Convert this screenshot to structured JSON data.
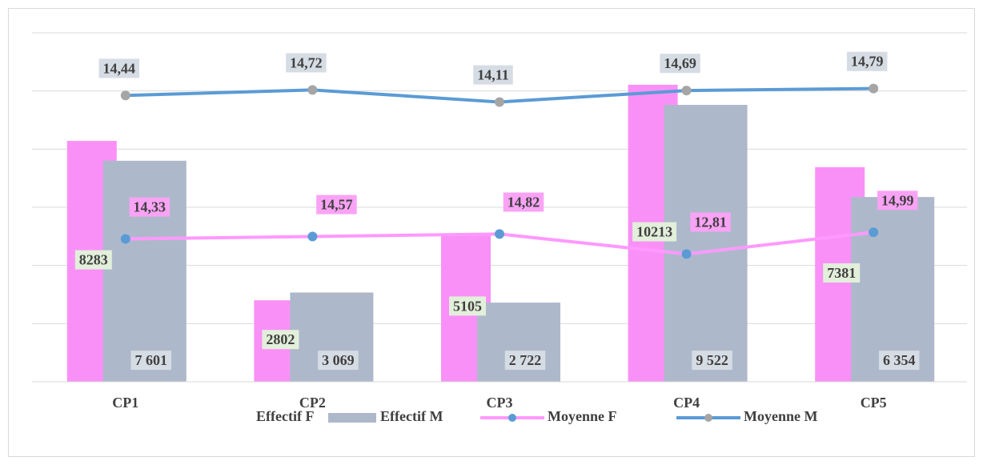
{
  "chart_data": {
    "type": "bar-line",
    "categories": [
      "CP1",
      "CP2",
      "CP3",
      "CP4",
      "CP5"
    ],
    "series": [
      {
        "name": "Effectif F",
        "type": "bar",
        "color": "#f990f7",
        "values": [
          8283,
          2802,
          5105,
          10213,
          7381
        ]
      },
      {
        "name": "Effectif M",
        "type": "bar",
        "color": "#adb9ca",
        "values": [
          7601,
          3069,
          2722,
          9522,
          6354
        ],
        "value_labels": [
          "7 601",
          "3 069",
          "2 722",
          "9 522",
          "6 354"
        ]
      },
      {
        "name": "Moyenne F",
        "type": "line",
        "color": "#ff99ff",
        "marker_color": "#5b9bd5",
        "axis": "y2",
        "values": [
          14.33,
          14.57,
          14.82,
          12.81,
          14.99
        ],
        "value_labels": [
          "14,33",
          "14,57",
          "14,82",
          "12,81",
          "14,99"
        ]
      },
      {
        "name": "Moyenne M",
        "type": "line",
        "color": "#5b9bd5",
        "marker_color": "#a5a5a5",
        "axis": "y3",
        "values": [
          14.44,
          14.72,
          14.11,
          14.69,
          14.79
        ],
        "value_labels": [
          "14,44",
          "14,72",
          "14,11",
          "14,69",
          "14,79"
        ]
      }
    ],
    "ylim": [
      0,
      12000
    ],
    "yticks": [
      0,
      2000,
      4000,
      6000,
      8000,
      10000,
      12000
    ],
    "y2lim": [
      0,
      35
    ],
    "y3lim": [
      0,
      17.6
    ],
    "grid": true,
    "legend": "bottom"
  }
}
